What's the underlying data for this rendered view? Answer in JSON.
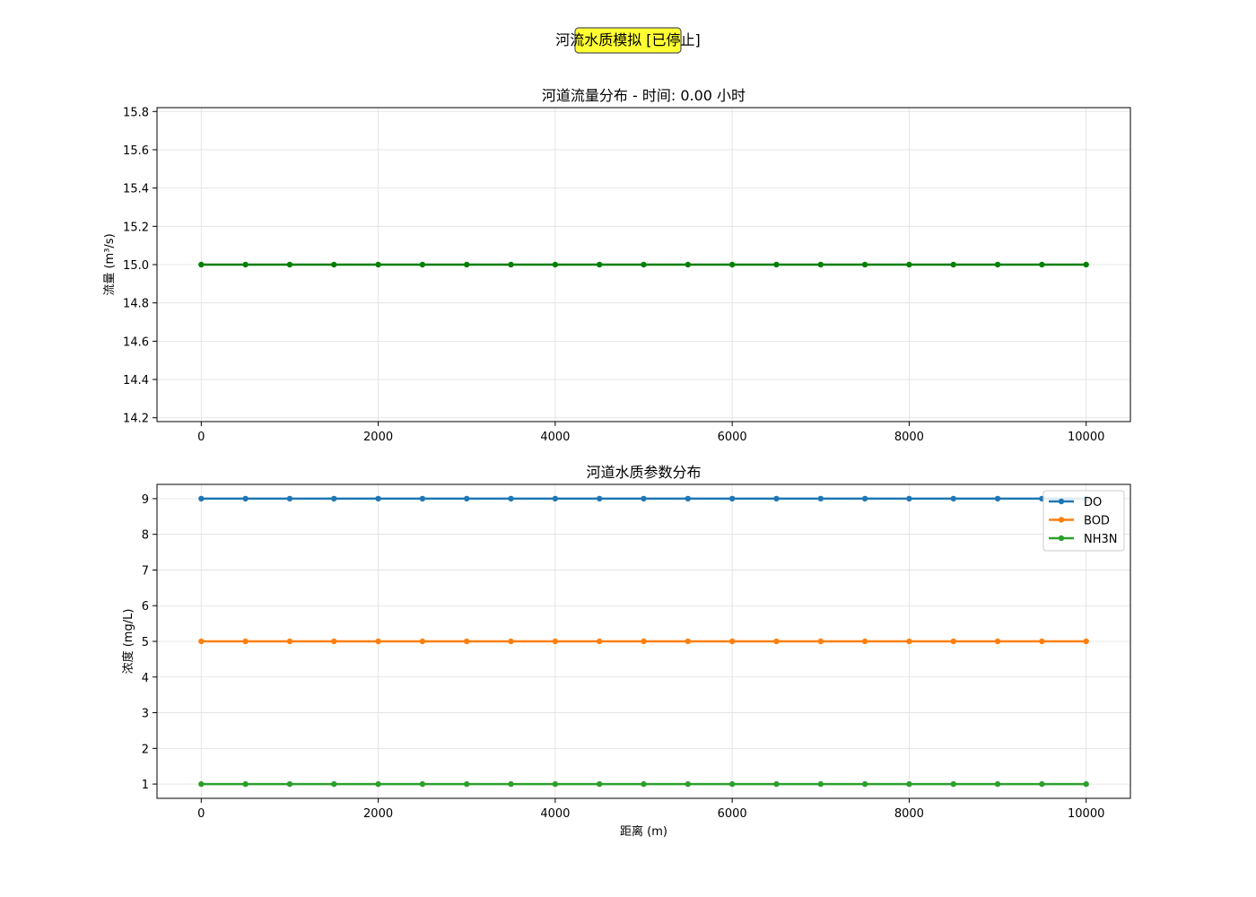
{
  "suptitle": "河流水质模拟 [已停止]",
  "chart_data": [
    {
      "type": "line",
      "title": "河道流量分布 - 时间: 0.00 小时",
      "xlabel": "",
      "ylabel": "流量 (m³/s)",
      "xlim": [
        -500,
        10500
      ],
      "ylim": [
        14.18,
        15.82
      ],
      "x_ticks": [
        0,
        2000,
        4000,
        6000,
        8000,
        10000
      ],
      "y_ticks": [
        14.2,
        14.4,
        14.6,
        14.8,
        15.0,
        15.2,
        15.4,
        15.6,
        15.8
      ],
      "y_tick_labels": [
        "14.2",
        "14.4",
        "14.6",
        "14.8",
        "15.0",
        "15.2",
        "15.4",
        "15.6",
        "15.8"
      ],
      "grid": true,
      "x": [
        0,
        500,
        1000,
        1500,
        2000,
        2500,
        3000,
        3500,
        4000,
        4500,
        5000,
        5500,
        6000,
        6500,
        7000,
        7500,
        8000,
        8500,
        9000,
        9500,
        10000
      ],
      "series": [
        {
          "values": [
            15,
            15,
            15,
            15,
            15,
            15,
            15,
            15,
            15,
            15,
            15,
            15,
            15,
            15,
            15,
            15,
            15,
            15,
            15,
            15,
            15
          ],
          "color": "#008000"
        }
      ]
    },
    {
      "type": "line",
      "title": "河道水质参数分布",
      "xlabel": "距离 (m)",
      "ylabel": "浓度 (mg/L)",
      "xlim": [
        -500,
        10500
      ],
      "ylim": [
        0.6,
        9.4
      ],
      "x_ticks": [
        0,
        2000,
        4000,
        6000,
        8000,
        10000
      ],
      "y_ticks": [
        1,
        2,
        3,
        4,
        5,
        6,
        7,
        8,
        9
      ],
      "y_tick_labels": [
        "1",
        "2",
        "3",
        "4",
        "5",
        "6",
        "7",
        "8",
        "9"
      ],
      "grid": true,
      "legend": "top-right",
      "x": [
        0,
        500,
        1000,
        1500,
        2000,
        2500,
        3000,
        3500,
        4000,
        4500,
        5000,
        5500,
        6000,
        6500,
        7000,
        7500,
        8000,
        8500,
        9000,
        9500,
        10000
      ],
      "series": [
        {
          "name": "DO",
          "values": [
            9,
            9,
            9,
            9,
            9,
            9,
            9,
            9,
            9,
            9,
            9,
            9,
            9,
            9,
            9,
            9,
            9,
            9,
            9,
            9,
            9
          ],
          "color": "#1f77b4"
        },
        {
          "name": "BOD",
          "values": [
            5,
            5,
            5,
            5,
            5,
            5,
            5,
            5,
            5,
            5,
            5,
            5,
            5,
            5,
            5,
            5,
            5,
            5,
            5,
            5,
            5
          ],
          "color": "#ff7f0e"
        },
        {
          "name": "NH3N",
          "values": [
            1,
            1,
            1,
            1,
            1,
            1,
            1,
            1,
            1,
            1,
            1,
            1,
            1,
            1,
            1,
            1,
            1,
            1,
            1,
            1,
            1
          ],
          "color": "#2ca02c"
        }
      ]
    }
  ]
}
